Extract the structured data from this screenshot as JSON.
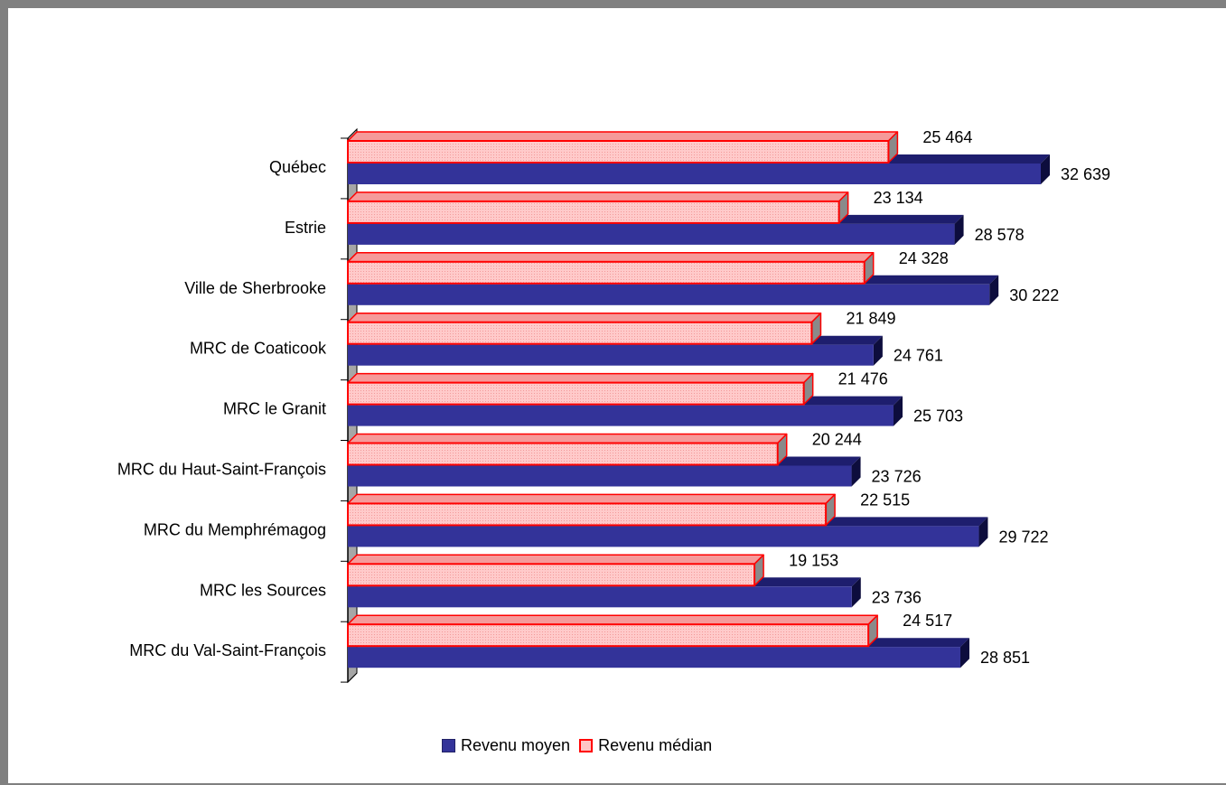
{
  "chart_data": {
    "type": "bar",
    "orientation": "horizontal",
    "three_d": true,
    "title": "",
    "xlabel": "",
    "ylabel": "",
    "xlim": [
      0,
      40000
    ],
    "grid": false,
    "legend_position": "bottom",
    "categories": [
      "Québec",
      "Estrie",
      "Ville de Sherbrooke",
      "MRC de Coaticook",
      "MRC le Granit",
      "MRC du Haut-Saint-François",
      "MRC du Memphrémagog",
      "MRC les Sources",
      "MRC du Val-Saint-François"
    ],
    "series": [
      {
        "name": "Revenu moyen",
        "color": "#333399",
        "values": [
          32639,
          28578,
          30222,
          24761,
          25703,
          23726,
          29722,
          23736,
          28851
        ],
        "labels": [
          "32 639",
          "28 578",
          "30 222",
          "24 761",
          "25 703",
          "23 726",
          "29 722",
          "23 736",
          "28 851"
        ]
      },
      {
        "name": "Revenu médian",
        "color": "#ffc4c4",
        "border_color": "#ff0000",
        "values": [
          25464,
          23134,
          24328,
          21849,
          21476,
          20244,
          22515,
          19153,
          24517
        ],
        "labels": [
          "25 464",
          "23 134",
          "24 328",
          "21 849",
          "21 476",
          "20 244",
          "22 515",
          "19 153",
          "24 517"
        ]
      }
    ]
  }
}
